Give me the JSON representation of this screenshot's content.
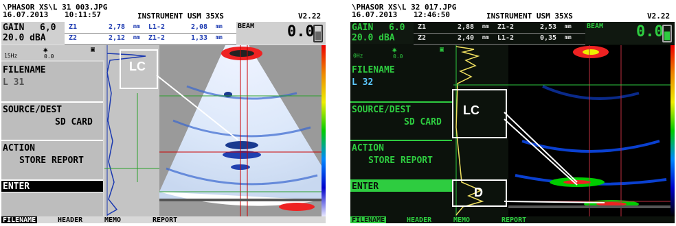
{
  "left": {
    "header": {
      "path": "\\PHASOR XS\\L 31 003.JPG",
      "date": "16.07.2013",
      "time": "10:11:57",
      "instrument": "INSTRUMENT USM 35XS",
      "version": "V2.22"
    },
    "gain": {
      "label": "GAIN",
      "step": "6,0",
      "value": "20.0 dBA"
    },
    "measurements": [
      {
        "name1": "Z1",
        "value1": "2,78",
        "unit1": "mm",
        "name2": "L1-2",
        "value2": "2,08",
        "unit2": "mm"
      },
      {
        "name1": "Z2",
        "value1": "2,12",
        "unit1": "mm",
        "name2": "Z1-2",
        "value2": "1,33",
        "unit2": "mm"
      }
    ],
    "beam": {
      "label": "BEAM",
      "value": "0.0"
    },
    "freq": "15Hz",
    "freq_value": "0.0",
    "menu": [
      {
        "title": "FILENAME",
        "value": "L 31"
      },
      {
        "title": "SOURCE/DEST",
        "value": "SD CARD"
      },
      {
        "title": "ACTION",
        "value": "STORE REPORT"
      },
      {
        "title": "ENTER",
        "value": ""
      }
    ],
    "footer": [
      "FILENAME",
      "HEADER",
      "MEMO",
      "REPORT"
    ],
    "callouts": [
      {
        "label": "LC"
      }
    ]
  },
  "right": {
    "header": {
      "path": "\\PHASOR XS\\L 32 017.JPG",
      "date": "16.07.2013",
      "time": "12:46:50",
      "instrument": "INSTRUMENT USM 35XS",
      "version": "V2.22"
    },
    "gain": {
      "label": "GAIN",
      "step": "6.0",
      "value": "20.0 dBA"
    },
    "measurements": [
      {
        "name1": "Z1",
        "value1": "2,88",
        "unit1": "mm",
        "name2": "Z1-2",
        "value2": "2,53",
        "unit2": "mm"
      },
      {
        "name1": "Z2",
        "value1": "2,40",
        "unit1": "mm",
        "name2": "L1-2",
        "value2": "0,35",
        "unit2": "mm"
      }
    ],
    "beam": {
      "label": "BEAM",
      "value": "0.0"
    },
    "freq": "0Hz",
    "freq_value": "0.0",
    "menu": [
      {
        "title": "FILENAME",
        "value": "L 32"
      },
      {
        "title": "SOURCE/DEST",
        "value": "SD CARD"
      },
      {
        "title": "ACTION",
        "value": "STORE REPORT"
      },
      {
        "title": "ENTER",
        "value": ""
      }
    ],
    "footer": [
      "FILENAME",
      "HEADER",
      "MEMO",
      "REPORT"
    ],
    "callouts": [
      {
        "label": "LC"
      },
      {
        "label": "D"
      }
    ]
  },
  "colors": {
    "left_accent": "#1a38b0",
    "right_accent": "#2ecc40"
  }
}
